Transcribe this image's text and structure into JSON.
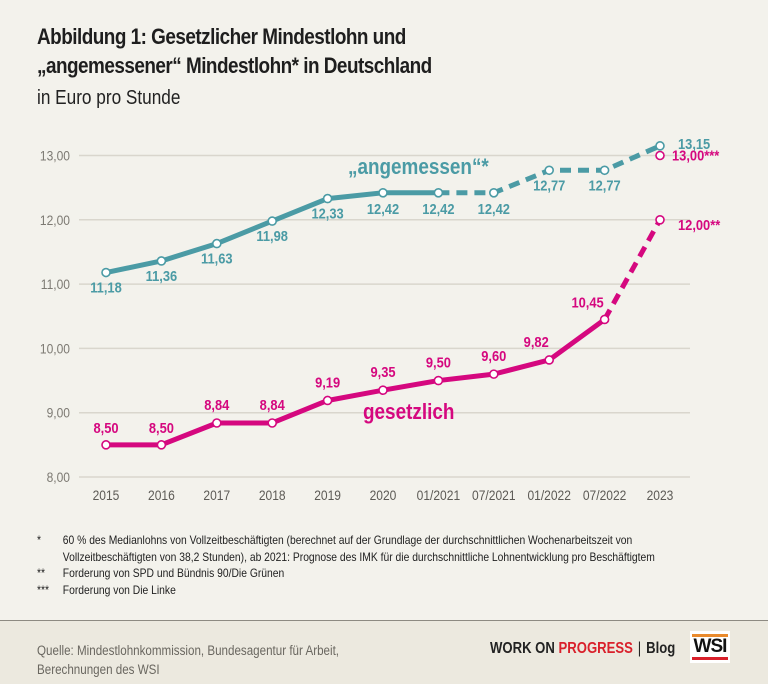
{
  "header": {
    "title_line1": "Abbildung 1: Gesetzlicher Mindestlohn und",
    "title_line2": "„angemessener“ Mindestlohn* in Deutschland",
    "subtitle": "in Euro pro Stunde"
  },
  "colors": {
    "angemessen": "#4b9ba5",
    "gesetzlich": "#d5087f",
    "grid": "#d9d6cd",
    "background": "#f3f2ec",
    "brand_red": "#d9202b"
  },
  "chart_data": {
    "type": "line",
    "title": "Abbildung 1: Gesetzlicher Mindestlohn und „angemessener“ Mindestlohn* in Deutschland",
    "subtitle": "in Euro pro Stunde",
    "xlabel": "",
    "ylabel": "",
    "categories": [
      "2015",
      "2016",
      "2017",
      "2018",
      "2019",
      "2020",
      "01/2021",
      "07/2021",
      "01/2022",
      "07/2022",
      "2023"
    ],
    "ylim": [
      8,
      13
    ],
    "yticks": [
      8,
      9,
      10,
      11,
      12,
      13
    ],
    "ytick_labels": [
      "8,00",
      "9,00",
      "10,00",
      "11,00",
      "12,00",
      "13,00"
    ],
    "grid": true,
    "series": [
      {
        "name": "„angemessen“*",
        "values": [
          11.18,
          11.36,
          11.63,
          11.98,
          12.33,
          12.42,
          12.42,
          12.42,
          12.77,
          12.77,
          13.15
        ],
        "labels": [
          "11,18",
          "11,36",
          "11,63",
          "11,98",
          "12,33",
          "12,42",
          "12,42",
          "12,42",
          "12,77",
          "12,77",
          "13,15"
        ],
        "dashed_from_index": 6
      },
      {
        "name": "gesetzlich",
        "values": [
          8.5,
          8.5,
          8.84,
          8.84,
          9.19,
          9.35,
          9.5,
          9.6,
          9.82,
          10.45,
          12.0
        ],
        "labels": [
          "8,50",
          "8,50",
          "8,84",
          "8,84",
          "9,19",
          "9,35",
          "9,50",
          "9,60",
          "9,82",
          "10,45",
          "12,00**"
        ],
        "dashed_from_index": 9
      }
    ],
    "extra_points": [
      {
        "series": "gesetzlich",
        "category": "2023",
        "value": 13.0,
        "label": "13,00***"
      }
    ]
  },
  "footnotes": [
    {
      "mark": "*",
      "text": "60 % des Medianlohns von Vollzeitbeschäftigten (berechnet auf der Grundlage der durchschnittlichen Wochenarbeitszeit von"
    },
    {
      "mark": "",
      "text": "Vollzeitbeschäftigten von 38,2 Stunden), ab 2021: Prognose des IMK für die durchschnittliche Lohnentwicklung pro Beschäftigtem"
    },
    {
      "mark": "**",
      "text": "Forderung von SPD und Bündnis 90/Die Grünen"
    },
    {
      "mark": "***",
      "text": "Forderung von Die Linke"
    }
  ],
  "footer": {
    "source_line1": "Quelle: Mindestlohnkommission, Bundesagentur für Arbeit,",
    "source_line2": "Berechnungen des WSI",
    "brand_part1": "WORK ON ",
    "brand_part2": "PROGRESS",
    "brand_sep": "|",
    "brand_blog": "Blog",
    "logo": "WSI"
  }
}
